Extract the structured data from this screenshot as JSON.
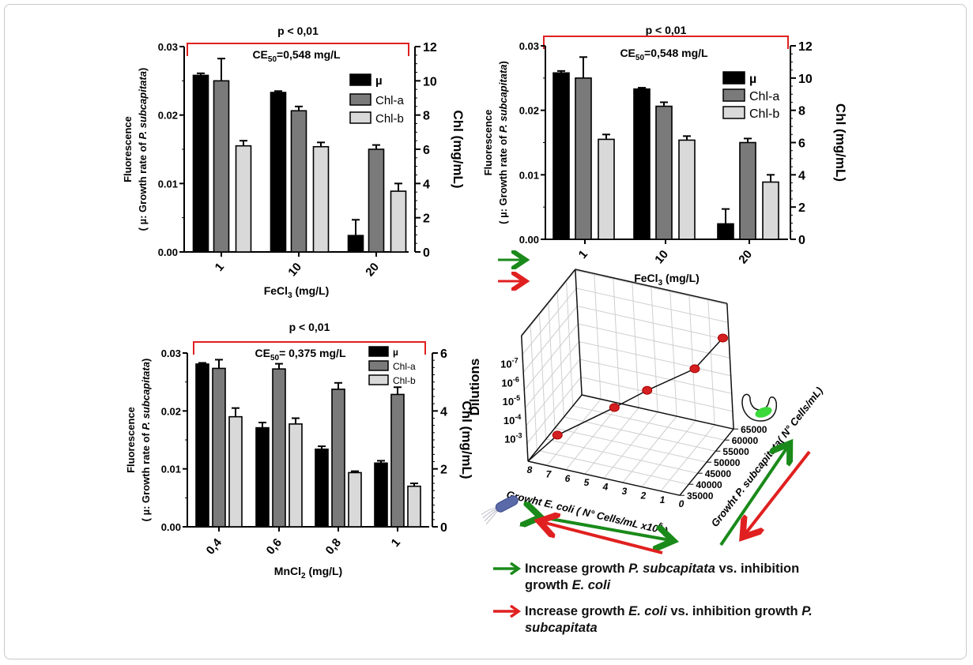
{
  "colors": {
    "mu": "#000000",
    "chl_a": "#7a7a7a",
    "chl_b": "#d9d9d9",
    "bracket": "#e02020",
    "green_arrow": "#1a8a1a",
    "red_arrow": "#e02020",
    "points": "#d42020"
  },
  "chart_data": [
    {
      "type": "bar",
      "panel": "top-left",
      "stat_text": "p < 0,01",
      "ce50_prefix": "CE",
      "ce50_sub": "50",
      "ce50_value": "=0,548 mg/L",
      "categories": [
        "1",
        "10",
        "20"
      ],
      "xlabel_main": "FeCl",
      "xlabel_sub": "3",
      "xlabel_unit": " (mg/L)",
      "ylabel_left_line1": "Fluorescence",
      "ylabel_left_line2_prefix": "( µ: Growth rate of ",
      "ylabel_left_line2_italic": "P. subcapitata",
      "ylabel_left_line2_suffix": ")",
      "ylabel_right": "Chl (mg/mL)",
      "ylim_left": [
        0,
        0.03
      ],
      "yticks_left": [
        "0.00",
        "0.01",
        "0.02",
        "0.03"
      ],
      "ylim_right": [
        0,
        12
      ],
      "yticks_right": [
        "0",
        "2",
        "4",
        "6",
        "8",
        "10",
        "12"
      ],
      "legend_position": "top-right",
      "series": [
        {
          "name": "µ",
          "axis": "left",
          "values": [
            0.0258,
            0.0233,
            0.0024
          ],
          "errors": [
            0.0003,
            0.0002,
            0.0023
          ]
        },
        {
          "name": "Chl-a",
          "axis": "right",
          "values": [
            10.0,
            8.25,
            6.0
          ],
          "errors": [
            1.3,
            0.25,
            0.25
          ]
        },
        {
          "name": "Chl-b",
          "axis": "right",
          "values": [
            6.2,
            6.15,
            3.55
          ],
          "errors": [
            0.3,
            0.25,
            0.45
          ]
        }
      ]
    },
    {
      "type": "bar",
      "panel": "top-right",
      "stat_text": "p < 0,01",
      "ce50_prefix": "CE",
      "ce50_sub": "50",
      "ce50_value": "=0,548 mg/L",
      "categories": [
        "1",
        "10",
        "20"
      ],
      "xlabel_main": "FeCl",
      "xlabel_sub": "3",
      "xlabel_unit": " (mg/L)",
      "ylabel_left_line1": "Fluorescence",
      "ylabel_left_line2_prefix": "( µ: Growth rate of ",
      "ylabel_left_line2_italic": "P. subcapitata",
      "ylabel_left_line2_suffix": ")",
      "ylabel_right": "Chl (mg/mL)",
      "ylim_left": [
        0,
        0.03
      ],
      "yticks_left": [
        "0.00",
        "0.01",
        "0.02",
        "0.03"
      ],
      "ylim_right": [
        0,
        12
      ],
      "yticks_right": [
        "0",
        "2",
        "4",
        "6",
        "8",
        "10",
        "12"
      ],
      "legend_position": "top-right",
      "series": [
        {
          "name": "µ",
          "axis": "left",
          "values": [
            0.0258,
            0.0233,
            0.0024
          ],
          "errors": [
            0.0003,
            0.0002,
            0.0023
          ]
        },
        {
          "name": "Chl-a",
          "axis": "right",
          "values": [
            10.0,
            8.25,
            6.0
          ],
          "errors": [
            1.3,
            0.25,
            0.25
          ]
        },
        {
          "name": "Chl-b",
          "axis": "right",
          "values": [
            6.2,
            6.15,
            3.55
          ],
          "errors": [
            0.3,
            0.25,
            0.45
          ]
        }
      ]
    },
    {
      "type": "bar",
      "panel": "bottom-left",
      "stat_text": "p < 0,01",
      "ce50_prefix": "CE",
      "ce50_sub": "50",
      "ce50_value": "= 0,375 mg/L",
      "categories": [
        "0,4",
        "0,6",
        "0,8",
        "1"
      ],
      "xlabel_main": "MnCl",
      "xlabel_sub": "2",
      "xlabel_unit": " (mg/L)",
      "ylabel_left_line1": "Fluorescence",
      "ylabel_left_line2_prefix": "( µ: Growth rate of ",
      "ylabel_left_line2_italic": "P. subcapitata",
      "ylabel_left_line2_suffix": ")",
      "ylabel_right": "Chl (mg/mL)",
      "ylim_left": [
        0,
        0.03
      ],
      "yticks_left": [
        "0.00",
        "0.01",
        "0.02",
        "0.03"
      ],
      "ylim_right": [
        0,
        6
      ],
      "yticks_right": [
        "0",
        "2",
        "4",
        "6"
      ],
      "legend_position": "top-right",
      "series": [
        {
          "name": "µ",
          "axis": "left",
          "values": [
            0.0281,
            0.0171,
            0.0134,
            0.011
          ],
          "errors": [
            0.0002,
            0.0009,
            0.0005,
            0.0004
          ]
        },
        {
          "name": "Chl-a",
          "axis": "right",
          "values": [
            5.47,
            5.45,
            4.75,
            4.57
          ],
          "errors": [
            0.3,
            0.18,
            0.22,
            0.25
          ]
        },
        {
          "name": "Chl-b",
          "axis": "right",
          "values": [
            3.8,
            3.55,
            1.87,
            1.4
          ],
          "errors": [
            0.3,
            0.2,
            0.05,
            0.1
          ]
        }
      ]
    },
    {
      "type": "scatter3d",
      "panel": "bottom-right",
      "zlabel": "Dilutions",
      "xlabel_prefix": "Growht ",
      "xlabel_italic": "E. coli",
      "xlabel_suffix": " ( N° Cells/mL x10",
      "xlabel_exp": "6",
      "xlabel_close": " )",
      "ylabel_prefix": "Growht ",
      "ylabel_italic": "P. subcapitata",
      "ylabel_suffix": "( N° Cells/mL)",
      "xticks": [
        "8",
        "7",
        "6",
        "5",
        "4",
        "3",
        "2",
        "1",
        "0"
      ],
      "yticks": [
        "35000",
        "40000",
        "45000",
        "50000",
        "55000",
        "60000",
        "65000"
      ],
      "zticks": [
        {
          "base": "10",
          "exp": "-3"
        },
        {
          "base": "10",
          "exp": "-4"
        },
        {
          "base": "10",
          "exp": "-5"
        },
        {
          "base": "10",
          "exp": "-6"
        },
        {
          "base": "10",
          "exp": "-7"
        }
      ],
      "points": [
        {
          "ecoli": 7.1,
          "psubcapitata": 42300,
          "dilution_exp": 3
        },
        {
          "ecoli": 4.8,
          "psubcapitata": 50300,
          "dilution_exp": 4
        },
        {
          "ecoli": 3.2,
          "psubcapitata": 52200,
          "dilution_exp": 5
        },
        {
          "ecoli": 1.1,
          "psubcapitata": 57100,
          "dilution_exp": 6
        },
        {
          "ecoli": 0.2,
          "psubcapitata": 63800,
          "dilution_exp": 7
        }
      ]
    }
  ],
  "icons": [
    "e-coli-bacterium-icon",
    "microalga-icon",
    "green-arrow-icon",
    "red-arrow-icon"
  ],
  "legend": {
    "green": {
      "t1": "Increase growth ",
      "i1": "P. subcapitata",
      "t2": " vs. inhibition growth ",
      "i2": "E. coli"
    },
    "red": {
      "t1": "Increase growth ",
      "i1": "E. coli",
      "t2": " vs. inhibition growth ",
      "i2": "P. subcapitata"
    }
  }
}
